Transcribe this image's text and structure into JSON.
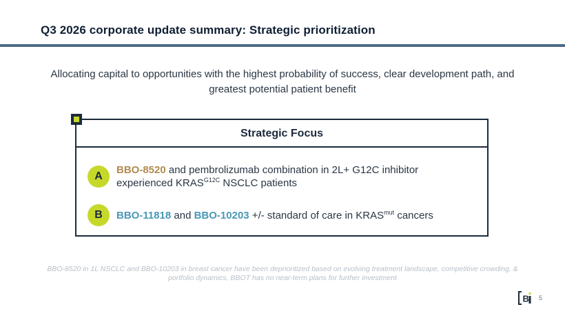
{
  "slide": {
    "title": "Q3 2026 corporate update summary: Strategic prioritization",
    "subtitle": "Allocating capital to opportunities with the highest probability of success, clear development path, and greatest potential patient benefit",
    "page_number": "5"
  },
  "focus_box": {
    "heading": "Strategic Focus",
    "items": [
      {
        "badge": "A",
        "drug": "BBO-8520",
        "text_1": " and pembrolizumab combination in 2L+ G12C inhibitor experienced KRAS",
        "sup": "G12C",
        "text_2": " NSCLC patients"
      },
      {
        "badge": "B",
        "drug_1": "BBO-11818",
        "text_1": " and ",
        "drug_2": "BBO-10203",
        "text_2": " +/- standard of care in KRAS",
        "sup": "mut",
        "text_3": " cancers"
      }
    ]
  },
  "footnote": "BBO-8520 in 1L NSCLC and BBO-10203 in breast cancer have been deprioritized based on evolving treatment landscape, competitive crowding, & portfolio dynamics, BBOT has no near-term plans for further investment",
  "colors": {
    "navy": "#1c2a3a",
    "accent_lime": "#c6d92b",
    "drug_gold": "#b28a4e",
    "drug_teal": "#4a98b6",
    "rule_blue": "#4d6a86"
  },
  "icons": {
    "logo": "company-logo-icon",
    "corner": "corner-square-icon"
  }
}
